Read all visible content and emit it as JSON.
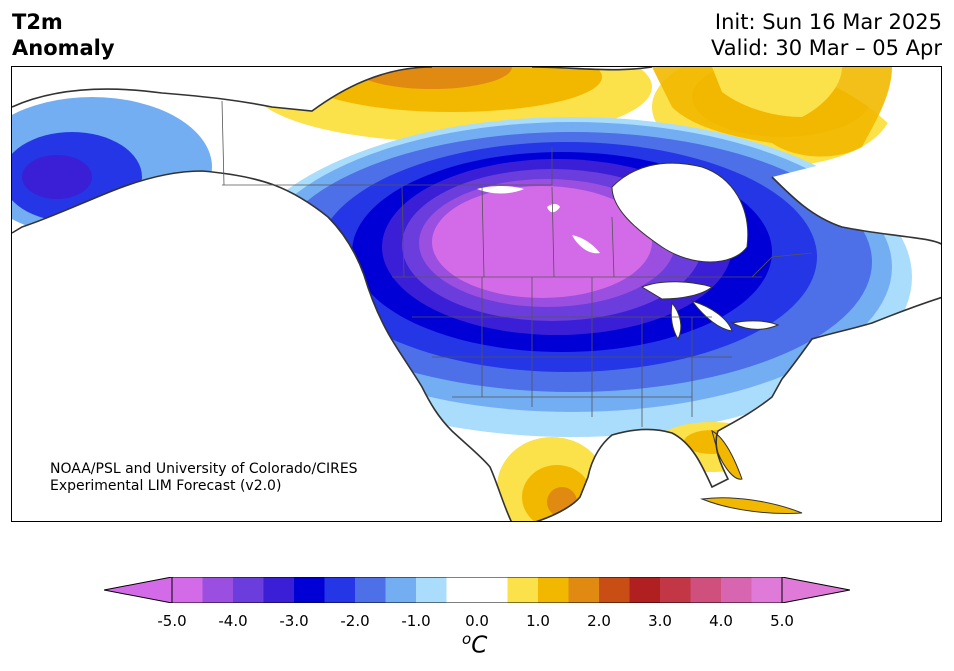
{
  "title": {
    "line1": "T2m",
    "line2": "Anomaly"
  },
  "header_right": {
    "init": "Init: Sun 16 Mar 2025",
    "valid": "Valid: 30 Mar – 05 Apr"
  },
  "credit": {
    "line1": "NOAA/PSL and University of Colorado/CIRES",
    "line2": "Experimental LIM Forecast (v2.0)"
  },
  "colorbar": {
    "unit_base": "C",
    "unit_sup": "o",
    "tick_labels": [
      "-5.0",
      "-4.0",
      "-3.0",
      "-2.0",
      "-1.0",
      "0.0",
      "1.0",
      "2.0",
      "3.0",
      "4.0",
      "5.0"
    ],
    "colors": [
      "#d36be8",
      "#9b4fe0",
      "#6b3ddc",
      "#3a1fd6",
      "#0000d6",
      "#2436e6",
      "#4d6fe8",
      "#74aef2",
      "#aadcfc",
      "#ffffff",
      "#ffffff",
      "#fbe14a",
      "#f2b800",
      "#e08a12",
      "#c84e16",
      "#b02020",
      "#c23646",
      "#cf4f7d",
      "#d865b0",
      "#e07ad8"
    ],
    "under_color": "#d36be8",
    "over_color": "#e07ad8"
  },
  "colors": {
    "land_outline": "#333333",
    "border": "#555555",
    "lakes": "#ffffff"
  }
}
